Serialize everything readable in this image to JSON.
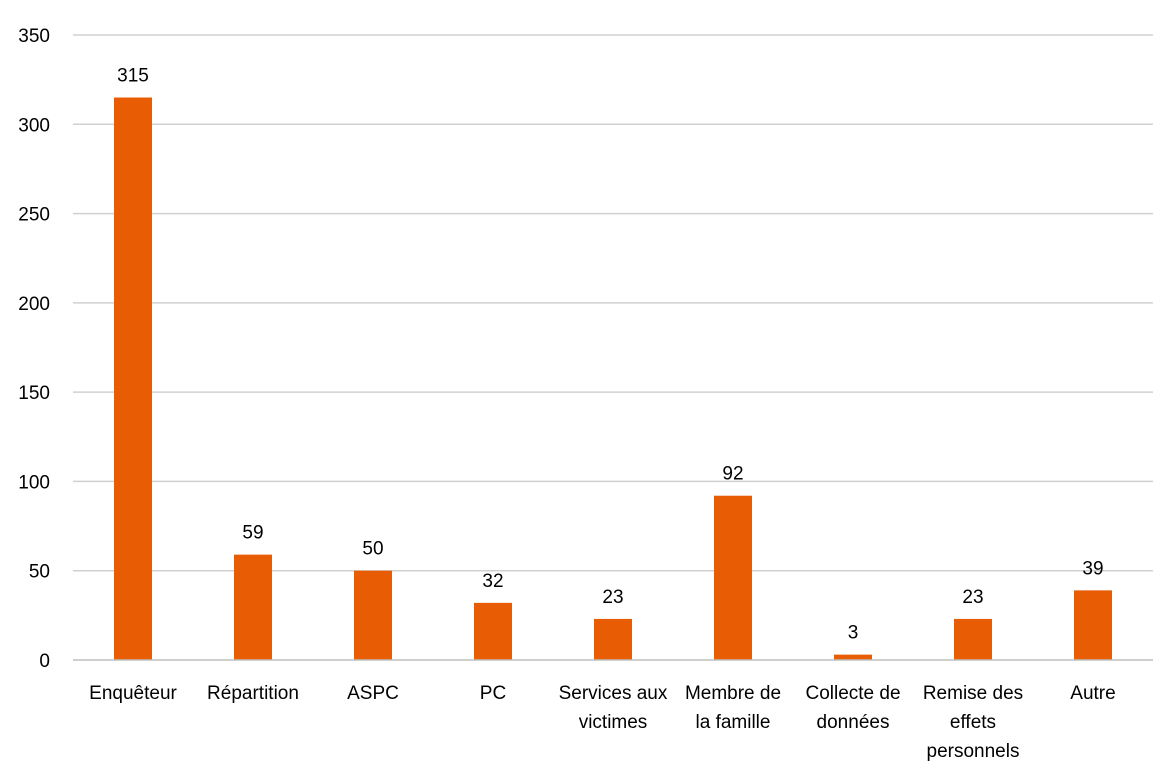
{
  "chart_data": {
    "type": "bar",
    "categories": [
      [
        "Enquêteur"
      ],
      [
        "Répartition"
      ],
      [
        "ASPC"
      ],
      [
        "PC"
      ],
      [
        "Services aux",
        "victimes"
      ],
      [
        "Membre de",
        "la famille"
      ],
      [
        "Collecte de",
        "données"
      ],
      [
        "Remise des",
        "effets",
        "personnels"
      ],
      [
        "Autre"
      ]
    ],
    "values": [
      315,
      59,
      50,
      32,
      23,
      92,
      3,
      23,
      39
    ],
    "ylim": [
      0,
      350
    ],
    "yticks": [
      0,
      50,
      100,
      150,
      200,
      250,
      300,
      350
    ],
    "grid": true,
    "data_labels": true,
    "legend": "none",
    "bar_color": "#E85D04"
  }
}
